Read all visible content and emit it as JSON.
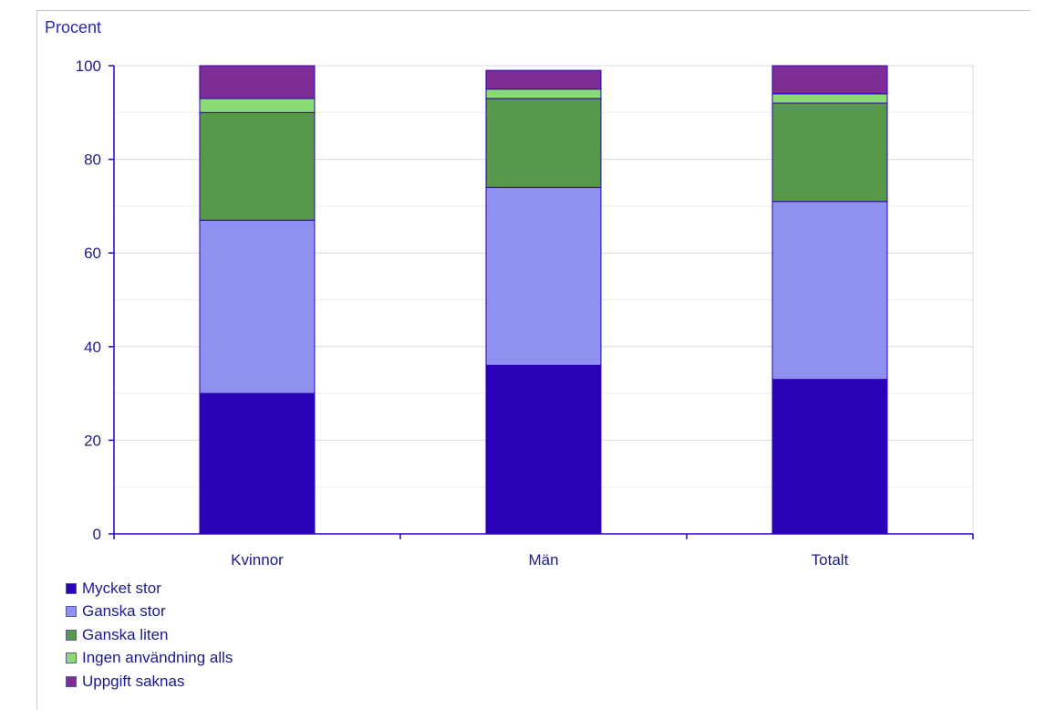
{
  "chart_data": {
    "type": "bar",
    "stacked": true,
    "ylabel": "Procent",
    "ylim": [
      0,
      100
    ],
    "yticks": [
      0,
      20,
      40,
      60,
      80,
      100
    ],
    "grid": true,
    "legend_position": "bottom-left",
    "categories": [
      "Kvinnor",
      "Män",
      "Totalt"
    ],
    "series": [
      {
        "name": "Mycket stor",
        "color": "#2a02b8",
        "values": [
          30,
          36,
          33
        ]
      },
      {
        "name": "Ganska stor",
        "color": "#9090f0",
        "values": [
          37,
          38,
          38
        ]
      },
      {
        "name": "Ganska liten",
        "color": "#58984a",
        "values": [
          23,
          19,
          21
        ]
      },
      {
        "name": "Ingen användning alls",
        "color": "#8adb72",
        "values": [
          3,
          2,
          2
        ]
      },
      {
        "name": "Uppgift saknas",
        "color": "#7e2d96",
        "values": [
          7,
          4,
          6
        ]
      }
    ]
  }
}
